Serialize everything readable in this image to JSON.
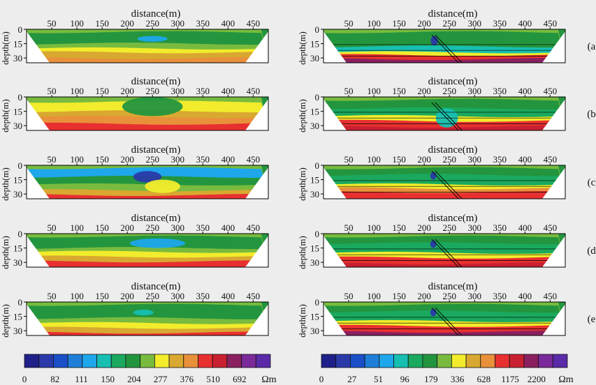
{
  "chart_data": {
    "type": "heatmap",
    "description_axes": {
      "xlabel": "distance(m)",
      "ylabel": "depth(m)",
      "xticks": [
        "50",
        "100",
        "150",
        "200",
        "250",
        "300",
        "350",
        "400",
        "450"
      ],
      "yticks": [
        "0",
        "15",
        "30"
      ],
      "xlim": [
        0,
        480
      ],
      "ylim": [
        0,
        35
      ]
    },
    "panel_labels": [
      "(a)",
      "(b)",
      "(c)",
      "(d)",
      "(e)"
    ],
    "legends": [
      {
        "colors": [
          "#20208a",
          "#2a3aa8",
          "#1a4fc8",
          "#1f7fd8",
          "#1ea7ea",
          "#17bfb2",
          "#1aa95e",
          "#23953e",
          "#78bb3e",
          "#f2ec2c",
          "#d8a830",
          "#e8903a",
          "#e83030",
          "#c82030",
          "#8a2060",
          "#7a2a9a",
          "#5a2aa8"
        ],
        "tick_labels": [
          "0",
          "82",
          "111",
          "150",
          "204",
          "277",
          "376",
          "510",
          "692"
        ],
        "unit": "Ωm"
      },
      {
        "colors": [
          "#20208a",
          "#2a3aa8",
          "#1a4fc8",
          "#1f7fd8",
          "#1ea7ea",
          "#17bfb2",
          "#1aa95e",
          "#23953e",
          "#78bb3e",
          "#f2ec2c",
          "#d8a830",
          "#e8903a",
          "#e83030",
          "#c82030",
          "#8a2060",
          "#7a2a9a",
          "#5a2aa8"
        ],
        "tick_labels": [
          "0",
          "27",
          "51",
          "96",
          "179",
          "336",
          "628",
          "1175",
          "2200"
        ],
        "unit": "Ωm"
      }
    ],
    "panels": [
      {
        "id": "a-left",
        "bands": [
          {
            "depth": 0,
            "color": "#78bb3e"
          },
          {
            "depth": 3,
            "color": "#23953e"
          },
          {
            "depth": 15,
            "color": "#78bb3e"
          },
          {
            "depth": 20,
            "color": "#f2ec2c"
          },
          {
            "depth": 24,
            "color": "#d8a830"
          },
          {
            "depth": 30,
            "color": "#e8903a"
          }
        ],
        "blobs": [
          {
            "x": 250,
            "depth": 10,
            "rx": 30,
            "ry": 3,
            "color": "#1ea7ea"
          }
        ]
      },
      {
        "id": "a-right",
        "bands": [
          {
            "depth": 0,
            "color": "#78bb3e"
          },
          {
            "depth": 3,
            "color": "#23953e"
          },
          {
            "depth": 18,
            "color": "#17bfb2"
          },
          {
            "depth": 24,
            "color": "#f2ec2c"
          },
          {
            "depth": 27,
            "color": "#e83030"
          },
          {
            "depth": 31,
            "color": "#8a2060"
          }
        ],
        "blobs": [
          {
            "x": 220,
            "depth": 12,
            "rx": 7,
            "ry": 5,
            "color": "#2a3aa8"
          }
        ],
        "fault": true,
        "hlines": [
          16,
          22,
          28
        ]
      },
      {
        "id": "b-left",
        "bands": [
          {
            "depth": 0,
            "color": "#78bb3e"
          },
          {
            "depth": 5,
            "color": "#f2ec2c"
          },
          {
            "depth": 15,
            "color": "#d8a830"
          },
          {
            "depth": 21,
            "color": "#e8903a"
          },
          {
            "depth": 28,
            "color": "#e83030"
          }
        ],
        "blobs": [
          {
            "x": 250,
            "depth": 10,
            "rx": 60,
            "ry": 10,
            "color": "#23953e"
          }
        ]
      },
      {
        "id": "b-right",
        "bands": [
          {
            "depth": 0,
            "color": "#78bb3e"
          },
          {
            "depth": 3,
            "color": "#23953e"
          },
          {
            "depth": 12,
            "color": "#1aa95e"
          },
          {
            "depth": 20,
            "color": "#f2ec2c"
          },
          {
            "depth": 25,
            "color": "#e83030"
          },
          {
            "depth": 31,
            "color": "#c82030"
          }
        ],
        "blobs": [
          {
            "x": 245,
            "depth": 22,
            "rx": 22,
            "ry": 10,
            "color": "#17bfb2"
          }
        ],
        "fault": true,
        "hlines": [
          16,
          22,
          28
        ]
      },
      {
        "id": "c-left",
        "bands": [
          {
            "depth": 0,
            "color": "#78bb3e"
          },
          {
            "depth": 3,
            "color": "#1ea7ea"
          },
          {
            "depth": 12,
            "color": "#23953e"
          },
          {
            "depth": 20,
            "color": "#78bb3e"
          },
          {
            "depth": 26,
            "color": "#d8a830"
          },
          {
            "depth": 31,
            "color": "#e83030"
          }
        ],
        "blobs": [
          {
            "x": 240,
            "depth": 12,
            "rx": 28,
            "ry": 6,
            "color": "#2a3aa8"
          },
          {
            "x": 270,
            "depth": 22,
            "rx": 35,
            "ry": 7,
            "color": "#f2ec2c"
          }
        ]
      },
      {
        "id": "c-right",
        "bands": [
          {
            "depth": 0,
            "color": "#78bb3e"
          },
          {
            "depth": 3,
            "color": "#23953e"
          },
          {
            "depth": 10,
            "color": "#1aa95e"
          },
          {
            "depth": 20,
            "color": "#f2ec2c"
          },
          {
            "depth": 24,
            "color": "#e8903a"
          },
          {
            "depth": 28,
            "color": "#e83030"
          }
        ],
        "blobs": [
          {
            "x": 218,
            "depth": 11,
            "rx": 6,
            "ry": 4,
            "color": "#2a3aa8"
          }
        ],
        "fault": true,
        "hlines": [
          16,
          22,
          28
        ]
      },
      {
        "id": "d-left",
        "bands": [
          {
            "depth": 0,
            "color": "#78bb3e"
          },
          {
            "depth": 3,
            "color": "#23953e"
          },
          {
            "depth": 15,
            "color": "#78bb3e"
          },
          {
            "depth": 19,
            "color": "#f2ec2c"
          },
          {
            "depth": 24,
            "color": "#d8a830"
          },
          {
            "depth": 29,
            "color": "#e83030"
          }
        ],
        "blobs": [
          {
            "x": 260,
            "depth": 10,
            "rx": 55,
            "ry": 5,
            "color": "#1ea7ea"
          }
        ]
      },
      {
        "id": "d-right",
        "bands": [
          {
            "depth": 0,
            "color": "#78bb3e"
          },
          {
            "depth": 3,
            "color": "#23953e"
          },
          {
            "depth": 10,
            "color": "#1aa95e"
          },
          {
            "depth": 20,
            "color": "#f2ec2c"
          },
          {
            "depth": 25,
            "color": "#e83030"
          },
          {
            "depth": 31,
            "color": "#c82030"
          }
        ],
        "blobs": [
          {
            "x": 218,
            "depth": 11,
            "rx": 6,
            "ry": 4,
            "color": "#2a3aa8"
          }
        ],
        "fault": true,
        "hlines": [
          16,
          22,
          28
        ]
      },
      {
        "id": "e-left",
        "bands": [
          {
            "depth": 0,
            "color": "#78bb3e"
          },
          {
            "depth": 3,
            "color": "#23953e"
          },
          {
            "depth": 17,
            "color": "#78bb3e"
          },
          {
            "depth": 22,
            "color": "#f2ec2c"
          },
          {
            "depth": 27,
            "color": "#d8a830"
          },
          {
            "depth": 32,
            "color": "#e83030"
          }
        ],
        "blobs": [
          {
            "x": 232,
            "depth": 11,
            "rx": 20,
            "ry": 3,
            "color": "#17bfb2"
          }
        ]
      },
      {
        "id": "e-right",
        "bands": [
          {
            "depth": 0,
            "color": "#78bb3e"
          },
          {
            "depth": 3,
            "color": "#23953e"
          },
          {
            "depth": 10,
            "color": "#1aa95e"
          },
          {
            "depth": 20,
            "color": "#f2ec2c"
          },
          {
            "depth": 25,
            "color": "#e83030"
          },
          {
            "depth": 31,
            "color": "#8a2060"
          }
        ],
        "blobs": [
          {
            "x": 218,
            "depth": 11,
            "rx": 6,
            "ry": 4,
            "color": "#2a3aa8"
          }
        ],
        "fault": true,
        "hlines": [
          16,
          22,
          28
        ]
      }
    ]
  }
}
